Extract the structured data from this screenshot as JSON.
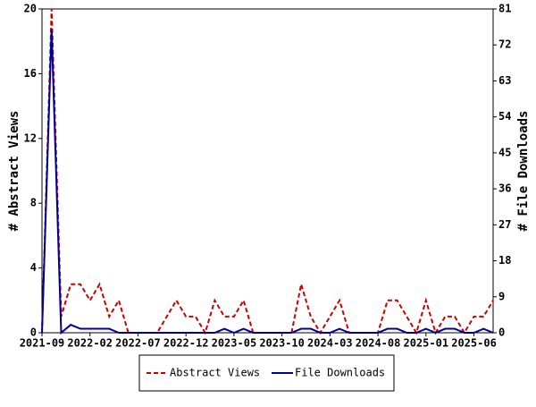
{
  "chart_data": {
    "type": "line",
    "categories": [
      "2021-09",
      null,
      null,
      null,
      null,
      "2022-02",
      null,
      null,
      null,
      null,
      "2022-07",
      null,
      null,
      null,
      null,
      "2022-12",
      null,
      null,
      null,
      null,
      "2023-05",
      null,
      null,
      null,
      null,
      "2023-10",
      null,
      null,
      null,
      null,
      "2024-03",
      null,
      null,
      null,
      null,
      "2024-08",
      null,
      null,
      null,
      null,
      "2025-01",
      null,
      null,
      null,
      null,
      "2025-06",
      null,
      null
    ],
    "ylabel": "# Abstract Views",
    "y2label": "# File Downloads",
    "ylim": [
      0,
      20
    ],
    "yticks": [
      0,
      4,
      8,
      12,
      16,
      20
    ],
    "y2lim": [
      0,
      81
    ],
    "y2ticks": [
      0,
      9,
      18,
      27,
      36,
      45,
      54,
      63,
      72,
      81
    ],
    "legend": "bottom",
    "series": [
      {
        "name": "Abstract Views",
        "color": "#cc0000",
        "dash": true,
        "values": [
          0,
          20,
          1,
          3,
          3,
          2,
          3,
          1,
          2,
          0,
          0,
          0,
          0,
          1,
          2,
          1,
          1,
          0,
          2,
          1,
          1,
          2,
          0,
          0,
          0,
          0,
          0,
          3,
          1,
          0,
          1,
          2,
          0,
          0,
          0,
          0,
          2,
          2,
          1,
          0,
          2,
          0,
          1,
          1,
          0,
          1,
          1,
          2
        ]
      },
      {
        "name": "File Downloads",
        "color": "#000099",
        "axis": "y2",
        "values": [
          0,
          76,
          0,
          2,
          1,
          1,
          1,
          1,
          0,
          0,
          0,
          0,
          0,
          0,
          0,
          0,
          0,
          0,
          0,
          1,
          0,
          1,
          0,
          0,
          0,
          0,
          0,
          1,
          1,
          0,
          0,
          1,
          0,
          0,
          0,
          0,
          1,
          1,
          0,
          0,
          1,
          0,
          1,
          1,
          0,
          0,
          1,
          0
        ]
      }
    ]
  }
}
